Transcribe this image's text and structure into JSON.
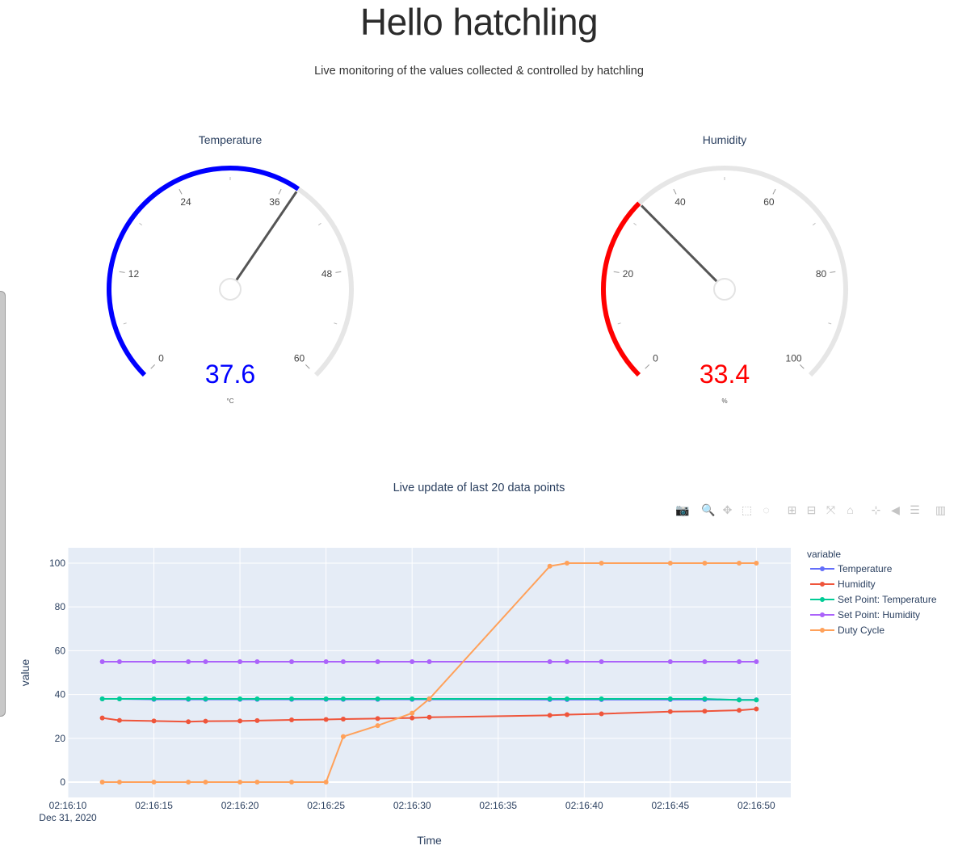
{
  "header": {
    "title": "Hello hatchling",
    "subtitle": "Live monitoring of the values collected & controlled by hatchling"
  },
  "gauges": [
    {
      "id": "temperature",
      "title": "Temperature",
      "value": 37.6,
      "value_text": "37.6",
      "unit": "°C",
      "min": 0,
      "max": 60,
      "ticks": [
        0,
        12,
        24,
        36,
        48,
        60
      ],
      "bar_color": "#0000ff",
      "track_color": "#e6e6e6"
    },
    {
      "id": "humidity",
      "title": "Humidity",
      "value": 33.4,
      "value_text": "33.4",
      "unit": "%",
      "min": 0,
      "max": 100,
      "ticks": [
        0,
        20,
        40,
        60,
        80,
        100
      ],
      "bar_color": "#ff0000",
      "track_color": "#e6e6e6"
    }
  ],
  "modebar": {
    "buttons": [
      {
        "name": "download-plot",
        "icon": "camera-icon",
        "glyph": "📷"
      },
      {
        "name": "zoom",
        "icon": "zoom-icon",
        "glyph": "🔍"
      },
      {
        "name": "pan",
        "icon": "pan-icon",
        "glyph": "✥"
      },
      {
        "name": "box-select",
        "icon": "box-select-icon",
        "glyph": "⬚"
      },
      {
        "name": "lasso-select",
        "icon": "lasso-icon",
        "glyph": "◌"
      },
      {
        "name": "zoom-in",
        "icon": "zoom-in-icon",
        "glyph": "⊞"
      },
      {
        "name": "zoom-out",
        "icon": "zoom-out-icon",
        "glyph": "⊟"
      },
      {
        "name": "autoscale",
        "icon": "autoscale-icon",
        "glyph": "⤧"
      },
      {
        "name": "reset-axes",
        "icon": "home-icon",
        "glyph": "⌂"
      },
      {
        "name": "spike-lines",
        "icon": "spikelines-icon",
        "glyph": "⊹"
      },
      {
        "name": "hover-closest",
        "icon": "hover-closest-icon",
        "glyph": "◀"
      },
      {
        "name": "hover-compare",
        "icon": "hover-compare-icon",
        "glyph": "☰"
      },
      {
        "name": "plotly-logo",
        "icon": "plotly-logo-icon",
        "glyph": "▥"
      }
    ]
  },
  "chart_data": {
    "type": "line",
    "title": "Live update of last 20 data points",
    "xlabel": "Time",
    "ylabel": "value",
    "x_ticks": [
      "02:16:10",
      "02:16:15",
      "02:16:20",
      "02:16:25",
      "02:16:30",
      "02:16:35",
      "02:16:40",
      "02:16:45",
      "02:16:50"
    ],
    "x_tick_sub": "Dec 31, 2020",
    "y_ticks": [
      0,
      20,
      40,
      60,
      80,
      100
    ],
    "xlim": [
      "02:16:10",
      "02:16:52"
    ],
    "ylim": [
      -7,
      107
    ],
    "grid": true,
    "legend_title": "variable",
    "legend_position": "right",
    "x": [
      "02:16:12",
      "02:16:13",
      "02:16:15",
      "02:16:17",
      "02:16:18",
      "02:16:20",
      "02:16:21",
      "02:16:23",
      "02:16:25",
      "02:16:26",
      "02:16:28",
      "02:16:30",
      "02:16:31",
      "02:16:38",
      "02:16:39",
      "02:16:41",
      "02:16:45",
      "02:16:47",
      "02:16:49",
      "02:16:50"
    ],
    "series": [
      {
        "name": "Temperature",
        "color": "#636efa",
        "values": [
          38,
          38,
          37.8,
          37.8,
          37.8,
          37.8,
          37.8,
          37.8,
          37.8,
          37.8,
          37.8,
          37.8,
          37.8,
          37.7,
          37.7,
          37.7,
          37.7,
          37.7,
          37.6,
          37.6
        ]
      },
      {
        "name": "Humidity",
        "color": "#ef553b",
        "values": [
          29.3,
          28.2,
          27.9,
          27.6,
          27.8,
          27.9,
          28.1,
          28.4,
          28.6,
          28.8,
          29,
          29.3,
          29.6,
          30.5,
          30.8,
          31.2,
          32.2,
          32.4,
          32.8,
          33.4
        ]
      },
      {
        "name": "Set Point: Temperature",
        "color": "#00cc96",
        "values": [
          38,
          38,
          38,
          38,
          38,
          38,
          38,
          38,
          38,
          38,
          38,
          38,
          38,
          38,
          38,
          38,
          38,
          38,
          37.5,
          37.5
        ]
      },
      {
        "name": "Set Point: Humidity",
        "color": "#ab63fa",
        "values": [
          55,
          55,
          55,
          55,
          55,
          55,
          55,
          55,
          55,
          55,
          55,
          55,
          55,
          55,
          55,
          55,
          55,
          55,
          55,
          55
        ]
      },
      {
        "name": "Duty Cycle",
        "color": "#ffa15a",
        "values": [
          0,
          0,
          0,
          0,
          0,
          0,
          0,
          0,
          0,
          20.8,
          25.8,
          31.5,
          38,
          98.6,
          100,
          100,
          100,
          100,
          100,
          100
        ]
      }
    ]
  }
}
